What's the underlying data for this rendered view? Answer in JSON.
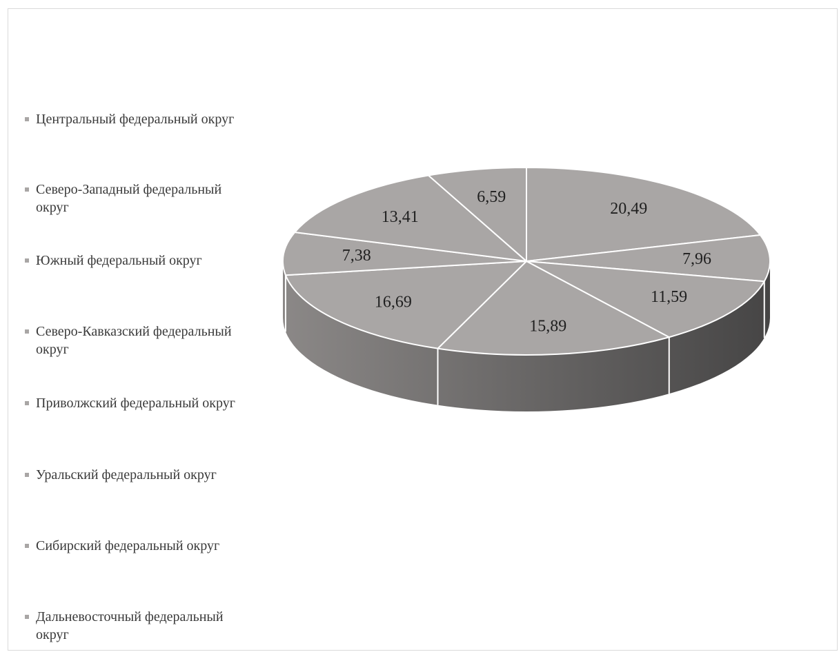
{
  "chart_data": {
    "type": "pie",
    "title": "",
    "legend_position": "left",
    "three_d": true,
    "colors": {
      "slice_top": "#a9a6a5",
      "slice_edge": "#ffffff",
      "side_light": "#8b8887",
      "side_dark": "#464545",
      "legend_marker": "#a9a6a5"
    },
    "slices": [
      {
        "name": "Центральный федеральный округ",
        "value": 20.49,
        "label": "20,49"
      },
      {
        "name": "Северо-Западный федеральный округ",
        "value": 7.96,
        "label": "7,96"
      },
      {
        "name": "Южный федеральный округ",
        "value": 11.59,
        "label": "11,59"
      },
      {
        "name": "Северо-Кавказский федеральный округ",
        "value": 15.89,
        "label": "15,89"
      },
      {
        "name": "Приволжский федеральный округ",
        "value": 16.69,
        "label": "16,69"
      },
      {
        "name": "Уральский федеральный округ",
        "value": 7.38,
        "label": "7,38"
      },
      {
        "name": "Сибирский федеральный округ",
        "value": 13.41,
        "label": "13,41"
      },
      {
        "name": "Дальневосточный федеральный округ",
        "value": 6.59,
        "label": "6,59"
      }
    ]
  }
}
